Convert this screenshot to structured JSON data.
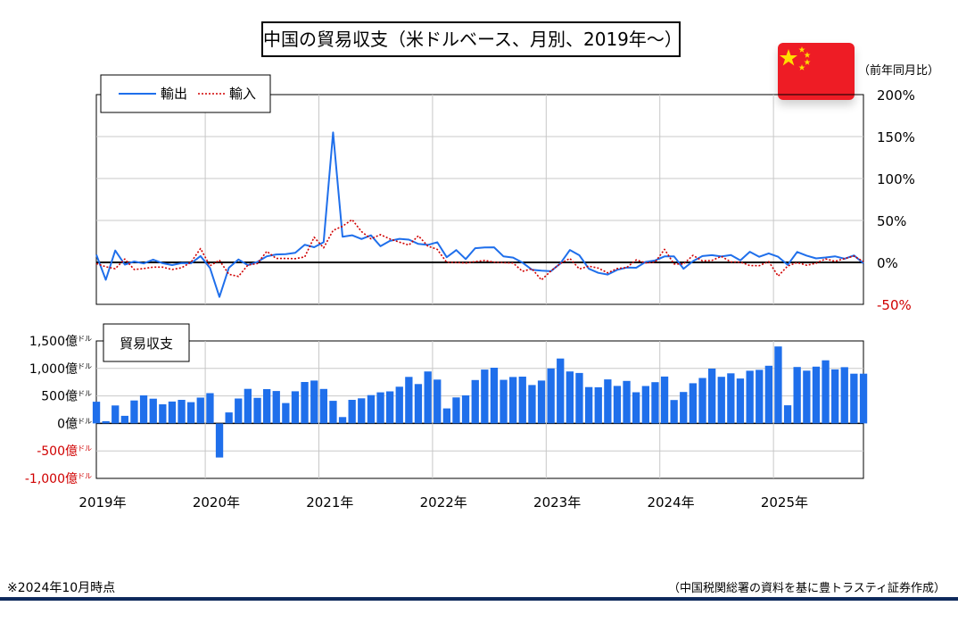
{
  "title": "中国の貿易収支（米ドルベース、月別、2019年〜）",
  "flag_icon": "china-flag-icon",
  "unit_label": "（前年同月比）",
  "footnote_left": "※2024年10月時点",
  "footnote_right": "（中国税関総署の資料を基に豊トラスティ証券作成）",
  "colors": {
    "export": "#1f6feb",
    "import": "#d00000",
    "bar": "#1f6feb",
    "negative_tick": "#d00000",
    "rule": "#0e2a5c"
  },
  "chart_data": [
    {
      "type": "line",
      "legend": [
        "輸出",
        "輸入"
      ],
      "legend_placement": "top-left",
      "yaxis_side": "right",
      "y_ticks": [
        "200%",
        "150%",
        "100%",
        "50%",
        "0%",
        "-50%"
      ],
      "ylim": [
        -50,
        200
      ],
      "grid": true,
      "x_start": "2019-01",
      "x_ticks": [
        "2019年",
        "2020年",
        "2021年",
        "2022年",
        "2023年",
        "2024年",
        "2025年"
      ],
      "series": [
        {
          "name": "輸出",
          "style": "solid",
          "values": [
            9.1,
            -20.7,
            14.2,
            -2.7,
            1.1,
            -1.3,
            3.3,
            -1.0,
            -3.2,
            -0.9,
            -1.1,
            7.6,
            -6.6,
            -41.2,
            -6.4,
            3.5,
            -3.3,
            0.5,
            7.2,
            9.5,
            9.9,
            11.4,
            21.1,
            18.1,
            24.0,
            154.9,
            30.6,
            32.3,
            27.9,
            32.2,
            19.3,
            25.6,
            28.1,
            27.1,
            22.0,
            20.9,
            24.0,
            6.2,
            14.7,
            3.9,
            16.9,
            17.9,
            18.0,
            7.1,
            5.7,
            -0.3,
            -8.7,
            -9.9,
            -10.5,
            -1.3,
            14.8,
            8.5,
            -7.5,
            -12.4,
            -14.5,
            -8.8,
            -6.2,
            -6.4,
            0.5,
            2.3,
            7.1,
            7.1,
            -7.6,
            1.5,
            7.6,
            8.6,
            7.0,
            8.7,
            2.4,
            12.7,
            6.7,
            10.7,
            6.7,
            -3.0,
            12.4,
            8.1,
            4.8,
            5.8,
            7.2,
            4.4,
            8.3,
            -1.1
          ],
          "note": "monthly YoY %, Jan-Feb 2019 shown as separate points"
        },
        {
          "name": "輸入",
          "style": "dotted",
          "values": [
            -1.5,
            -5.2,
            -7.6,
            4.0,
            -8.5,
            -7.3,
            -5.6,
            -5.6,
            -8.5,
            -6.4,
            0.3,
            16.5,
            -4.0,
            2.4,
            -14.2,
            -16.7,
            -3.2,
            -1.4,
            13.2,
            4.7,
            4.7,
            4.5,
            6.5,
            30.0,
            17.3,
            38.1,
            43.1,
            51.1,
            36.7,
            28.1,
            33.1,
            28.0,
            24.1,
            20.6,
            31.7,
            19.5,
            15.5,
            0.0,
            -0.1,
            -0.7,
            1.0,
            2.3,
            0.3,
            -0.3,
            -0.7,
            -10.6,
            -7.5,
            -21.0,
            -10.2,
            -1.4,
            4.7,
            -7.9,
            -4.5,
            -6.8,
            -12.4,
            -7.3,
            -6.2,
            3.0,
            -0.6,
            0.2,
            15.5,
            -1.9,
            -1.9,
            8.4,
            1.8,
            2.3,
            7.2,
            0.5,
            0.3,
            -3.7,
            -3.9,
            1.0,
            -16.3,
            -4.3,
            -0.2,
            -3.4,
            -1.1,
            4.1,
            1.3,
            4.5,
            7.5,
            1.0
          ],
          "note": "monthly YoY %"
        }
      ]
    },
    {
      "type": "bar",
      "label": "貿易収支",
      "ylim": [
        -1000,
        1500
      ],
      "y_ticks": [
        "1,500億ドル",
        "1,000億ドル",
        "500億ドル",
        "0億ドル",
        "-500億ドル",
        "-1,000億ドル"
      ],
      "y_unit": "億ドル",
      "grid": true,
      "x_start": "2019-01",
      "x_ticks": [
        "2019年",
        "2020年",
        "2021年",
        "2022年",
        "2023年",
        "2024年",
        "2025年"
      ],
      "values": [
        395,
        41,
        326,
        138,
        417,
        509,
        450,
        348,
        397,
        428,
        387,
        469,
        550,
        -620,
        199,
        453,
        629,
        465,
        623,
        589,
        370,
        584,
        754,
        780,
        626,
        410,
        116,
        429,
        456,
        515,
        565,
        583,
        667,
        845,
        716,
        944,
        797,
        273,
        473,
        510,
        789,
        979,
        1013,
        793,
        844,
        851,
        698,
        779,
        1000,
        1181,
        944,
        918,
        660,
        658,
        800,
        682,
        773,
        567,
        681,
        750,
        853,
        425,
        571,
        731,
        826,
        996,
        847,
        911,
        817,
        957,
        974,
        1048,
        1400,
        329,
        1026,
        960,
        1033,
        1147,
        982,
        1023,
        904,
        904
      ]
    }
  ]
}
